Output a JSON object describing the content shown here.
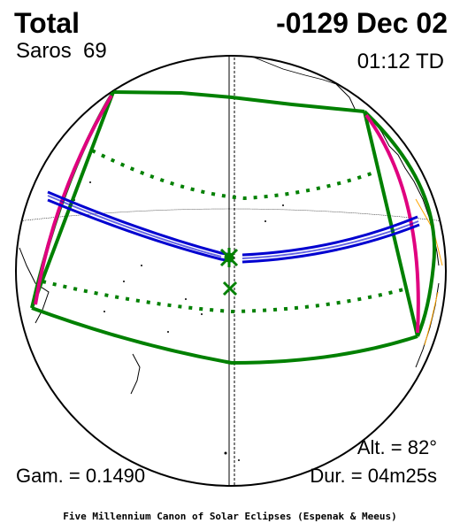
{
  "header": {
    "eclipse_type": "Total",
    "date": "-0129 Dec 02",
    "saros_label": "Saros",
    "saros_number": "69",
    "time": "01:12 TD"
  },
  "stats": {
    "altitude": "Alt. = 82°",
    "gamma": "Gam. = 0.1490",
    "duration": "Dur. = 04m25s"
  },
  "footer": {
    "credit": "Five Millennium Canon of Solar Eclipses (Espenak & Meeus)"
  },
  "colors": {
    "penumbra": "#008000",
    "umbra": "#0000d0",
    "limits": "#e0007f",
    "coast": "#000000",
    "borders": "#ffa500"
  }
}
